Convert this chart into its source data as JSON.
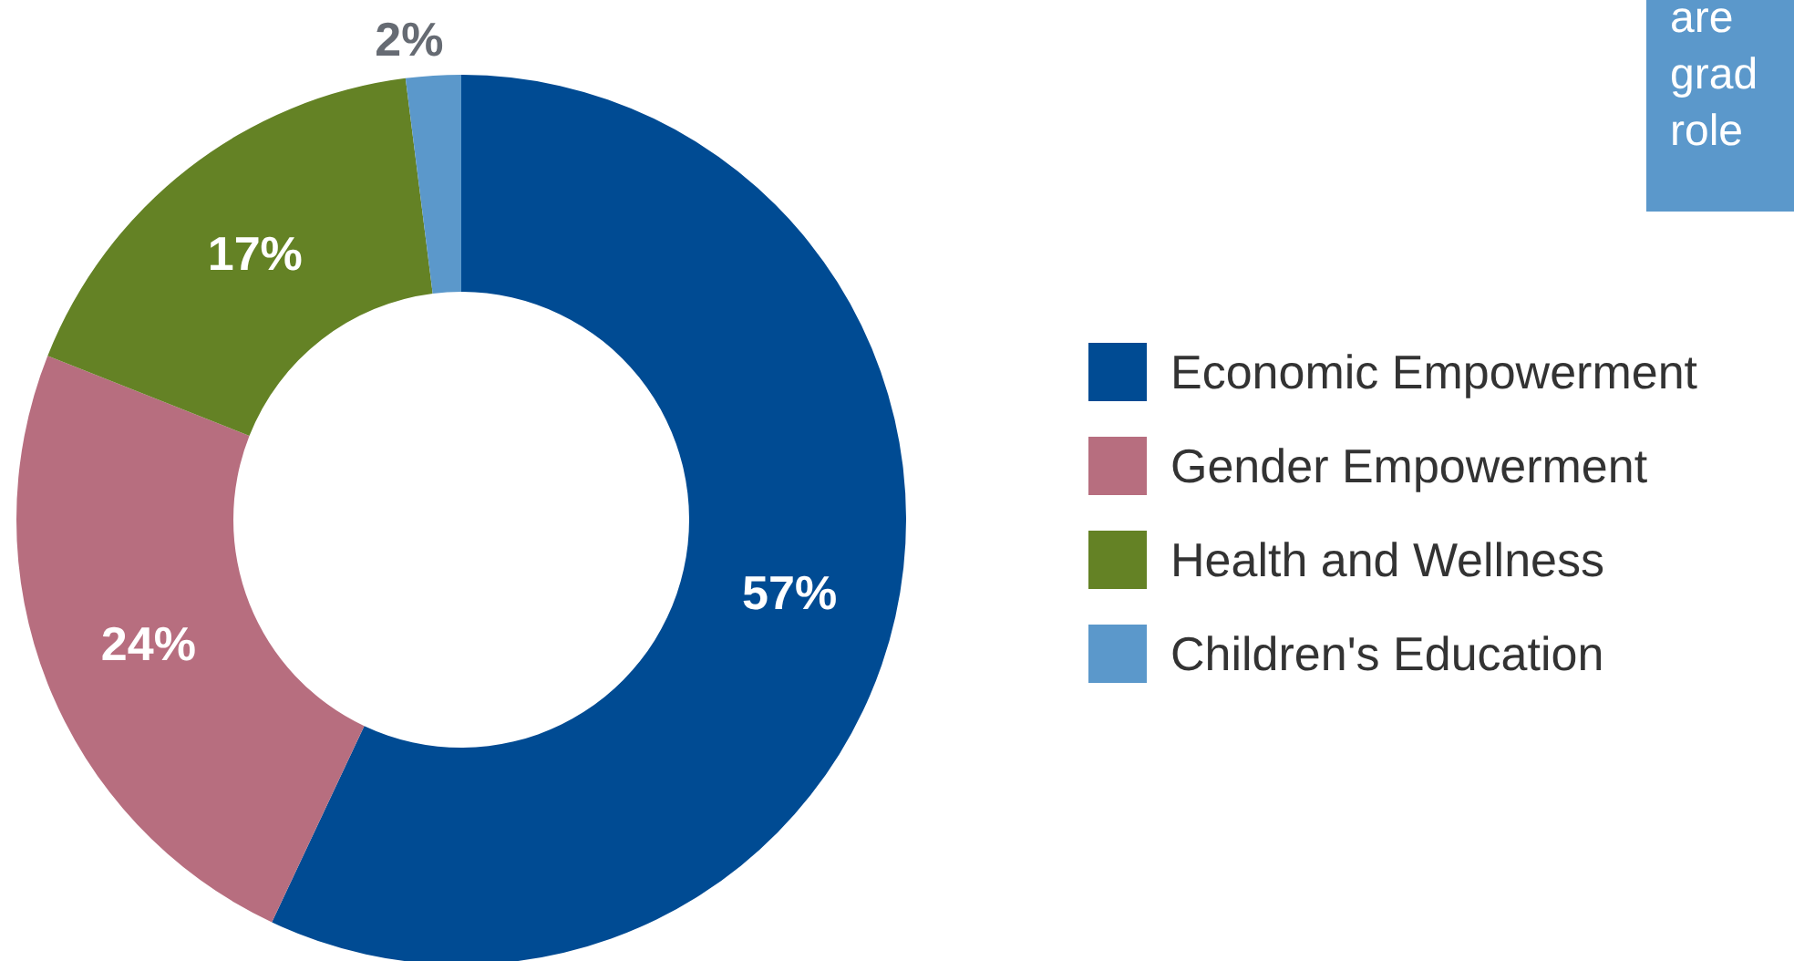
{
  "chart_data": {
    "type": "donut",
    "categories": [
      "Economic Empowerment",
      "Gender Empowerment",
      "Health and Wellness",
      "Children's Education"
    ],
    "values": [
      57,
      24,
      17,
      2
    ],
    "colors": [
      "#004b93",
      "#b76e7f",
      "#648225",
      "#5b98cb"
    ],
    "value_labels": [
      "57%",
      "24%",
      "17%",
      "2%"
    ],
    "legend": "right",
    "annotations": [
      "are",
      "grad",
      "role"
    ]
  }
}
